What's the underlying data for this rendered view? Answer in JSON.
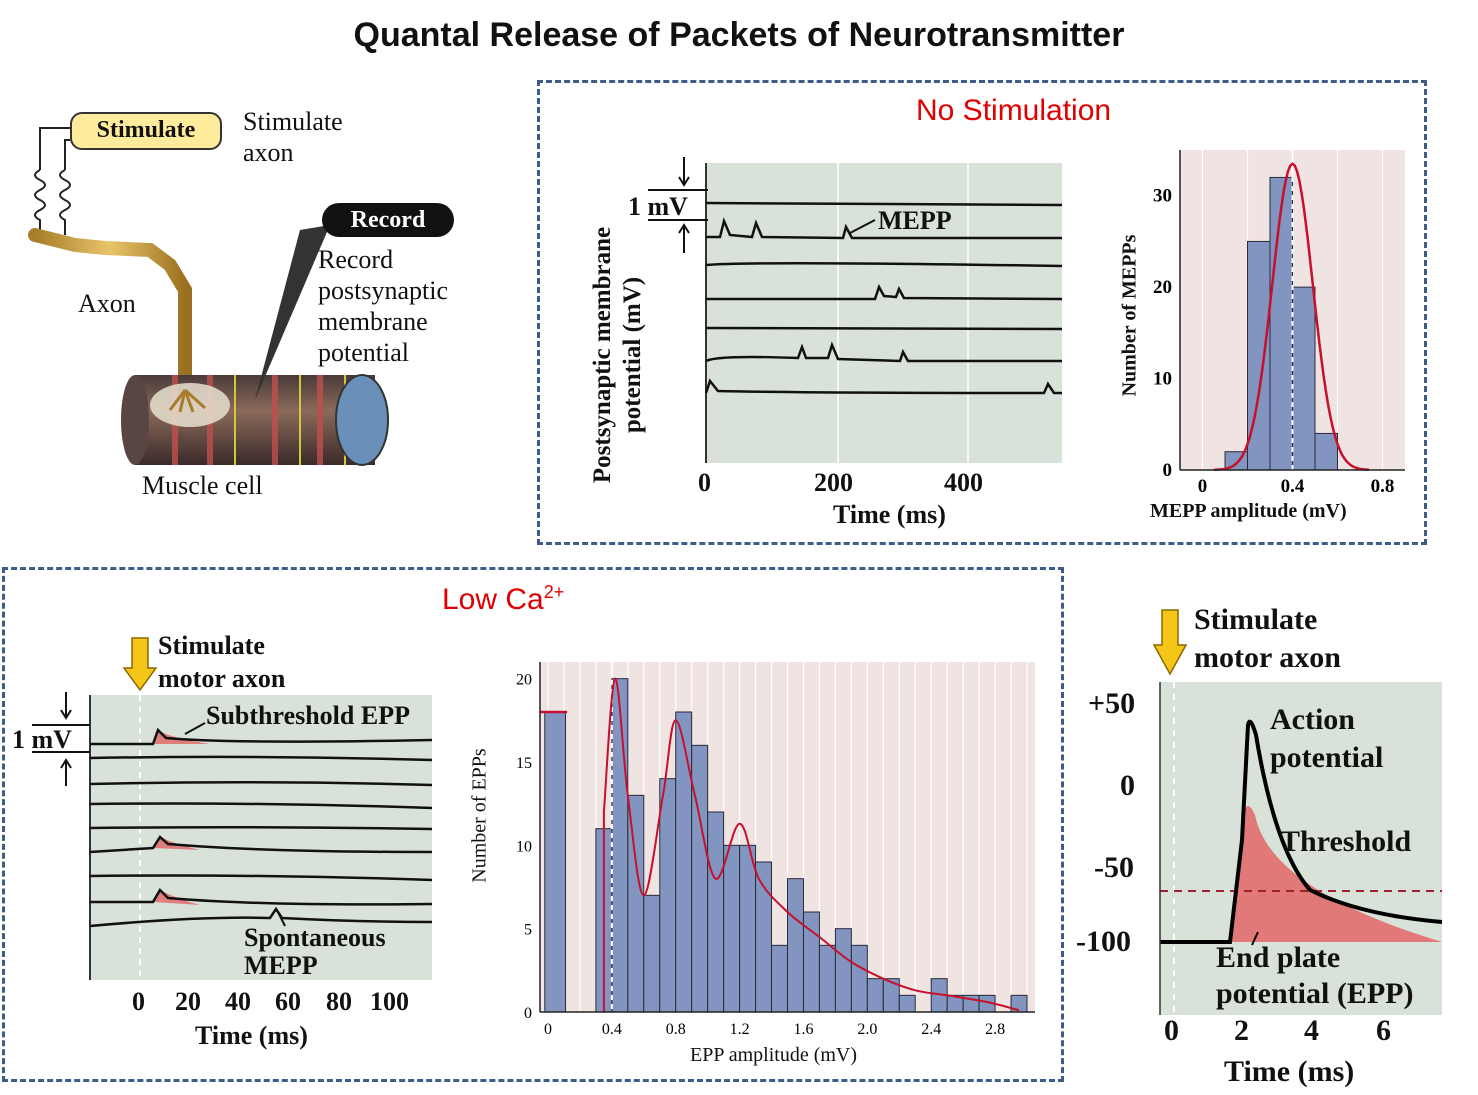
{
  "title": "Quantal Release of Packets of Neurotransmitter",
  "colors": {
    "panel_bg": "#d9e2d8",
    "grid_pink_bg": "#f0e4e2",
    "bar_fill": "#8195c0",
    "fit_curve": "#c8102e",
    "epp_fill": "#e06666",
    "box_border": "#3e5c8a",
    "section_label": "#e00000",
    "stimulus_arrow": "#f5c518"
  },
  "setup": {
    "stimulate_button": "Stimulate",
    "stimulate_caption": [
      "Stimulate",
      "axon"
    ],
    "record_button": "Record",
    "record_caption": [
      "Record",
      "postsynaptic",
      "membrane",
      "potential"
    ],
    "axon_label": "Axon",
    "muscle_label": "Muscle cell"
  },
  "no_stim": {
    "heading": "No Stimulation",
    "traces": {
      "ylabel_line1": "Postsynaptic membrane",
      "ylabel_line2": "potential (mV)",
      "scale_label": "1 mV",
      "annotation": "MEPP",
      "xticks": [
        "0",
        "200",
        "400"
      ],
      "xlabel": "Time (ms)"
    }
  },
  "low_ca": {
    "heading_main": "Low Ca",
    "heading_sup": "2+",
    "traces": {
      "stim_label": [
        "Stimulate",
        "motor axon"
      ],
      "scale_label": "1 mV",
      "annotation_top": "Subthreshold EPP",
      "annotation_bottom": [
        "Spontaneous",
        "MEPP"
      ],
      "xticks": [
        "0",
        "20",
        "40",
        "60",
        "80",
        "100"
      ],
      "xlabel": "Time (ms)"
    }
  },
  "threshold_panel": {
    "stim_label": [
      "Stimulate",
      "motor axon"
    ],
    "yticks": [
      "+50",
      "0",
      "-50",
      "-100"
    ],
    "xticks": [
      "0",
      "2",
      "4",
      "6"
    ],
    "xlabel": "Time (ms)",
    "label_ap": [
      "Action",
      "potential"
    ],
    "label_threshold": "Threshold",
    "label_epp": [
      "End plate",
      "potential (EPP)"
    ]
  },
  "chart_data": [
    {
      "type": "bar",
      "xlabel": "MEPP amplitude (mV)",
      "ylabel": "Number of MEPPs",
      "xlim": [
        -0.1,
        0.9
      ],
      "ylim": [
        0,
        35
      ],
      "xticks": [
        "0",
        "0.4",
        "0.8"
      ],
      "yticks": [
        "0",
        "10",
        "20",
        "30"
      ],
      "bin_width": 0.1,
      "bins": [
        0.15,
        0.25,
        0.35,
        0.45,
        0.55,
        0.65
      ],
      "values": [
        2,
        25,
        32,
        20,
        4,
        0
      ],
      "fit_curve": "gaussian",
      "fit_mean": 0.4,
      "fit_sd": 0.09,
      "fit_peak": 33.5,
      "mean_line": 0.4
    },
    {
      "type": "bar",
      "xlabel": "EPP amplitude (mV)",
      "ylabel": "Number of  EPPs",
      "xlim": [
        -0.05,
        3.05
      ],
      "ylim": [
        0,
        21
      ],
      "xticks": [
        "0",
        "0.4",
        "0.8",
        "1.2",
        "1.6",
        "2.0",
        "2.4",
        "2.8"
      ],
      "yticks": [
        "0",
        "5",
        "10",
        "15",
        "20"
      ],
      "bin_width": 0.1,
      "bins": [
        0.0,
        0.35,
        0.45,
        0.55,
        0.65,
        0.75,
        0.85,
        0.95,
        1.05,
        1.15,
        1.25,
        1.35,
        1.45,
        1.55,
        1.65,
        1.75,
        1.85,
        1.95,
        2.05,
        2.15,
        2.25,
        2.35,
        2.45,
        2.55,
        2.65,
        2.75,
        2.85,
        2.95
      ],
      "values": [
        18,
        11,
        20,
        13,
        7,
        14,
        18,
        16,
        12,
        10,
        10,
        9,
        4,
        8,
        6,
        4,
        5,
        4,
        2,
        2,
        1,
        0,
        2,
        1,
        1,
        1,
        0,
        1
      ],
      "failures_mark": 18,
      "fit_points": [
        [
          0.02,
          18
        ],
        [
          0.35,
          12
        ],
        [
          0.42,
          20
        ],
        [
          0.5,
          13
        ],
        [
          0.6,
          7
        ],
        [
          0.72,
          13
        ],
        [
          0.8,
          17.5
        ],
        [
          0.92,
          13
        ],
        [
          1.05,
          8
        ],
        [
          1.2,
          11.3
        ],
        [
          1.32,
          8
        ],
        [
          1.5,
          6
        ],
        [
          1.7,
          4.5
        ],
        [
          1.9,
          3
        ],
        [
          2.1,
          2
        ],
        [
          2.3,
          1.3
        ],
        [
          2.5,
          1
        ],
        [
          2.75,
          0.6
        ],
        [
          2.95,
          0.1
        ]
      ],
      "mean_line": 0.4
    }
  ]
}
